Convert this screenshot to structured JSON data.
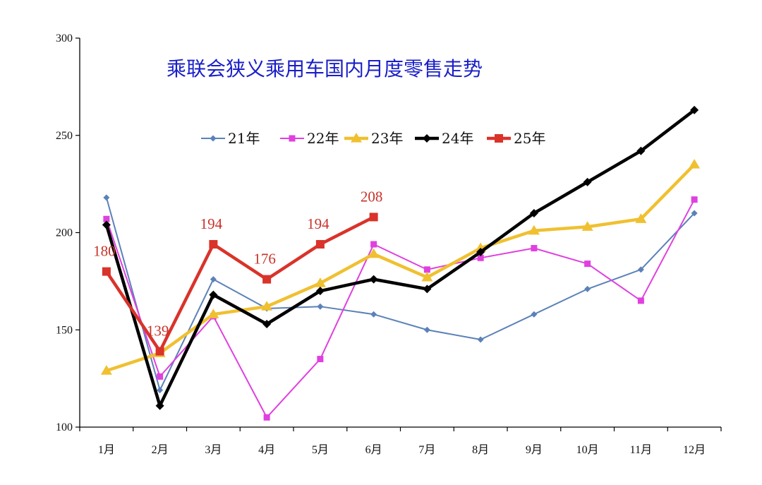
{
  "chart_data": {
    "type": "line",
    "title": "乘联会狭义乘用车国内月度零售走势",
    "xlabel": "",
    "ylabel": "",
    "ylim": [
      100,
      300
    ],
    "yticks": [
      100,
      150,
      200,
      250,
      300
    ],
    "categories": [
      "1月",
      "2月",
      "3月",
      "4月",
      "5月",
      "6月",
      "7月",
      "8月",
      "9月",
      "10月",
      "11月",
      "12月"
    ],
    "legend_position": "top-center",
    "grid": false,
    "series": [
      {
        "name": "21年",
        "color": "#5b82b8",
        "marker": "diamond",
        "width": 2,
        "values": [
          218,
          119,
          176,
          161,
          162,
          158,
          150,
          145,
          158,
          171,
          181,
          210
        ]
      },
      {
        "name": "22年",
        "color": "#e040e0",
        "marker": "square",
        "width": 2,
        "values": [
          207,
          126,
          157,
          105,
          135,
          194,
          181,
          187,
          192,
          184,
          165,
          217
        ]
      },
      {
        "name": "23年",
        "color": "#f0c030",
        "marker": "triangle",
        "width": 4.5,
        "values": [
          129,
          138,
          158,
          162,
          174,
          189,
          177,
          192,
          201,
          203,
          207,
          235
        ]
      },
      {
        "name": "24年",
        "color": "#000000",
        "marker": "diamond",
        "width": 4.5,
        "values": [
          204,
          111,
          168,
          153,
          170,
          176,
          171,
          190,
          210,
          226,
          242,
          263
        ]
      },
      {
        "name": "25年",
        "color": "#d9332a",
        "marker": "square",
        "width": 4.5,
        "values": [
          180,
          139,
          194,
          176,
          194,
          208,
          null,
          null,
          null,
          null,
          null,
          null
        ],
        "data_labels": [
          "180",
          "139",
          "194",
          "176",
          "194",
          "208"
        ]
      }
    ]
  }
}
